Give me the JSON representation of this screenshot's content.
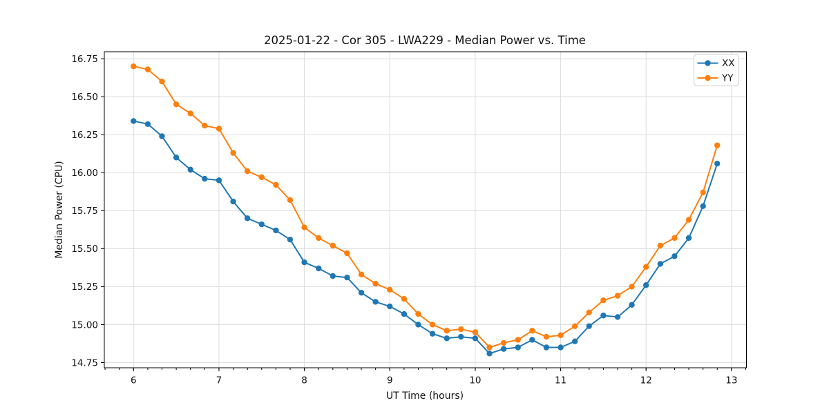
{
  "chart_data": {
    "type": "line",
    "title": "2025-01-22 - Cor 305 - LWA229 - Median Power vs. Time",
    "xlabel": "UT Time (hours)",
    "ylabel": "Median Power (CPU)",
    "xlim": [
      5.658,
      13.175
    ],
    "ylim": [
      14.716,
      16.796
    ],
    "x_ticks": [
      6,
      7,
      8,
      9,
      10,
      11,
      12,
      13
    ],
    "x_tick_labels": [
      "6",
      "7",
      "8",
      "9",
      "10",
      "11",
      "12",
      "13"
    ],
    "x_minor_tick_step": 0.166667,
    "y_ticks": [
      14.75,
      15.0,
      15.25,
      15.5,
      15.75,
      16.0,
      16.25,
      16.5,
      16.75
    ],
    "y_tick_labels": [
      "14.75",
      "15.00",
      "15.25",
      "15.50",
      "15.75",
      "16.00",
      "16.25",
      "16.50",
      "16.75"
    ],
    "grid": true,
    "grid_color": "#dcdcdc",
    "spine_color": "#000000",
    "legend_position": "upper right",
    "x": [
      6.0,
      6.167,
      6.333,
      6.5,
      6.667,
      6.833,
      7.0,
      7.167,
      7.333,
      7.5,
      7.667,
      7.833,
      8.0,
      8.167,
      8.333,
      8.5,
      8.667,
      8.833,
      9.0,
      9.167,
      9.333,
      9.5,
      9.667,
      9.833,
      10.0,
      10.167,
      10.333,
      10.5,
      10.667,
      10.833,
      11.0,
      11.167,
      11.333,
      11.5,
      11.667,
      11.833,
      12.0,
      12.167,
      12.333,
      12.5,
      12.667,
      12.833
    ],
    "series": [
      {
        "name": "XX",
        "color": "#1f77b4",
        "values": [
          16.34,
          16.32,
          16.24,
          16.1,
          16.02,
          15.96,
          15.95,
          15.81,
          15.7,
          15.66,
          15.62,
          15.56,
          15.41,
          15.37,
          15.32,
          15.31,
          15.21,
          15.15,
          15.12,
          15.07,
          15.0,
          14.94,
          14.91,
          14.92,
          14.91,
          14.81,
          14.84,
          14.85,
          14.9,
          14.85,
          14.85,
          14.89,
          14.99,
          15.06,
          15.05,
          15.13,
          15.26,
          15.4,
          15.45,
          15.57,
          15.78,
          16.06
        ]
      },
      {
        "name": "YY",
        "color": "#ff7f0e",
        "values": [
          16.7,
          16.68,
          16.6,
          16.45,
          16.39,
          16.31,
          16.29,
          16.13,
          16.01,
          15.97,
          15.92,
          15.82,
          15.64,
          15.57,
          15.52,
          15.47,
          15.33,
          15.27,
          15.23,
          15.17,
          15.07,
          15.0,
          14.96,
          14.97,
          14.95,
          14.85,
          14.88,
          14.9,
          14.96,
          14.92,
          14.93,
          14.99,
          15.08,
          15.16,
          15.19,
          15.25,
          15.38,
          15.52,
          15.57,
          15.69,
          15.87,
          16.18
        ]
      }
    ]
  }
}
